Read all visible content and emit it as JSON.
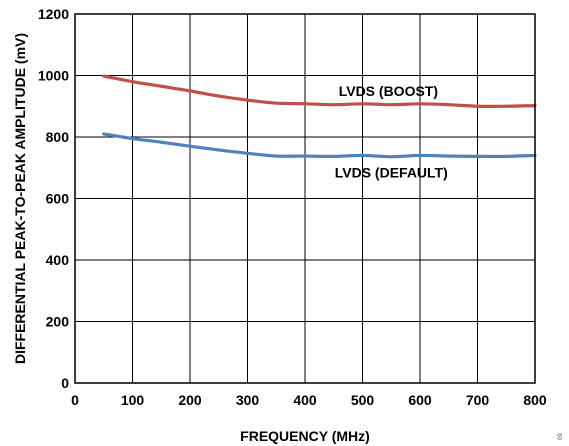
{
  "chart_data": {
    "type": "line",
    "title": "",
    "xlabel": "FREQUENCY (MHz)",
    "ylabel": "DIFFERENTIAL PEAK-TO-PEAK AMPLITUDE (mV)",
    "xlim": [
      0,
      800
    ],
    "ylim": [
      0,
      1200
    ],
    "xticks": [
      0,
      100,
      200,
      300,
      400,
      500,
      600,
      700,
      800
    ],
    "yticks": [
      0,
      200,
      400,
      600,
      800,
      1000,
      1200
    ],
    "xtick_labels": [
      "0",
      "100",
      "200",
      "300",
      "400",
      "500",
      "600",
      "700",
      "800"
    ],
    "ytick_labels": [
      "0",
      "200",
      "400",
      "600",
      "800",
      "1000",
      "1200"
    ],
    "grid": true,
    "legend": "none",
    "series": [
      {
        "name": "LVDS (BOOST)",
        "color": "#c0504d",
        "x": [
          50,
          100,
          150,
          200,
          250,
          300,
          350,
          400,
          450,
          500,
          550,
          600,
          650,
          700,
          750,
          800
        ],
        "y": [
          998,
          980,
          965,
          950,
          933,
          920,
          910,
          908,
          905,
          908,
          905,
          908,
          905,
          900,
          900,
          902
        ]
      },
      {
        "name": "LVDS (DEFAULT)",
        "color": "#4f81bd",
        "x": [
          50,
          100,
          150,
          200,
          250,
          300,
          350,
          400,
          450,
          500,
          550,
          600,
          650,
          700,
          750,
          800
        ],
        "y": [
          810,
          795,
          783,
          770,
          758,
          747,
          738,
          738,
          737,
          740,
          736,
          740,
          738,
          737,
          737,
          740
        ]
      }
    ],
    "annotations": [
      {
        "text": "LVDS (BOOST)",
        "x": 545,
        "y": 950
      },
      {
        "text": "LVDS (DEFAULT)",
        "x": 550,
        "y": 685
      }
    ]
  },
  "figure_id": "09"
}
